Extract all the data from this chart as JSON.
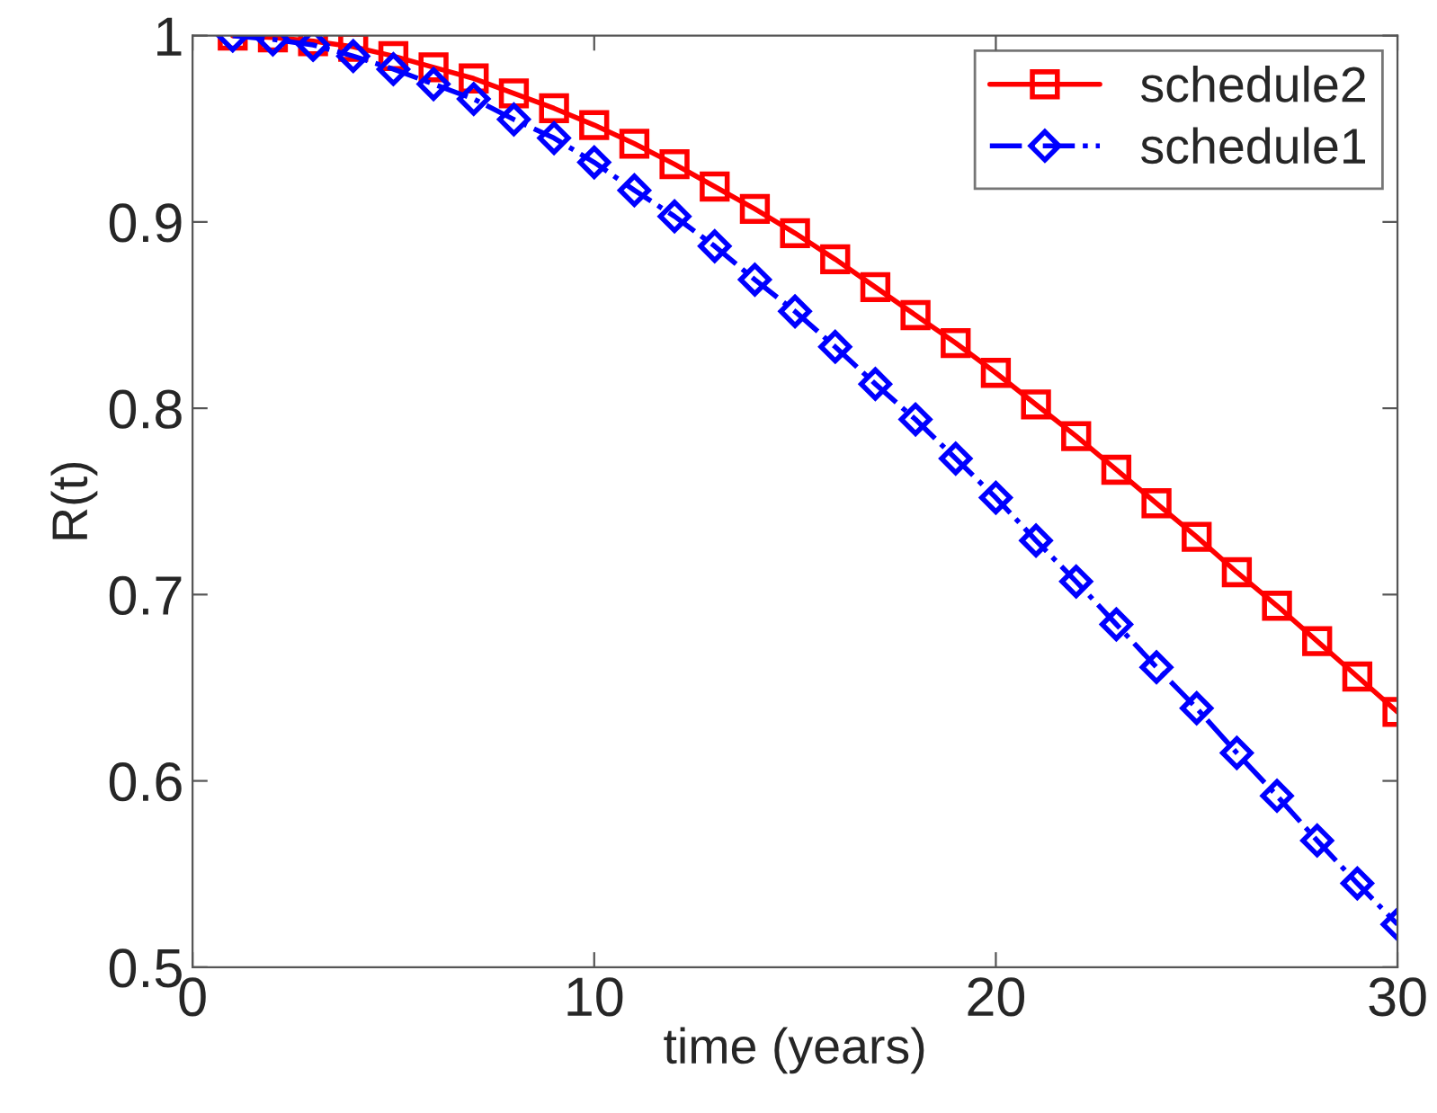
{
  "chart_data": {
    "type": "line",
    "xlabel": "time (years)",
    "ylabel": "R(t)",
    "x": [
      1,
      2,
      3,
      4,
      5,
      6,
      7,
      8,
      9,
      10,
      11,
      12,
      13,
      14,
      15,
      16,
      17,
      18,
      19,
      20,
      21,
      22,
      23,
      24,
      25,
      26,
      27,
      28,
      29,
      30
    ],
    "series": [
      {
        "name": "schedule2",
        "color": "#ff0000",
        "marker": "square",
        "line_style": "solid",
        "values": [
          1.0,
          0.999,
          0.997,
          0.994,
          0.989,
          0.983,
          0.977,
          0.969,
          0.961,
          0.952,
          0.942,
          0.931,
          0.919,
          0.907,
          0.894,
          0.88,
          0.865,
          0.85,
          0.835,
          0.819,
          0.802,
          0.785,
          0.767,
          0.749,
          0.731,
          0.712,
          0.694,
          0.675,
          0.656,
          0.637
        ]
      },
      {
        "name": "schedule1",
        "color": "#0000ff",
        "marker": "diamond",
        "line_style": "dashdot",
        "values": [
          1.0,
          0.998,
          0.995,
          0.989,
          0.982,
          0.974,
          0.966,
          0.955,
          0.945,
          0.932,
          0.917,
          0.903,
          0.887,
          0.869,
          0.852,
          0.833,
          0.813,
          0.794,
          0.773,
          0.752,
          0.729,
          0.707,
          0.684,
          0.661,
          0.639,
          0.615,
          0.592,
          0.568,
          0.545,
          0.523
        ]
      }
    ],
    "xlim": [
      0,
      30
    ],
    "xticks": [
      0,
      10,
      20,
      30
    ],
    "ylim": [
      0.5,
      1
    ],
    "yticks": [
      0.5,
      0.6,
      0.7,
      0.8,
      0.9,
      1
    ],
    "grid": false,
    "legend": "top right"
  }
}
